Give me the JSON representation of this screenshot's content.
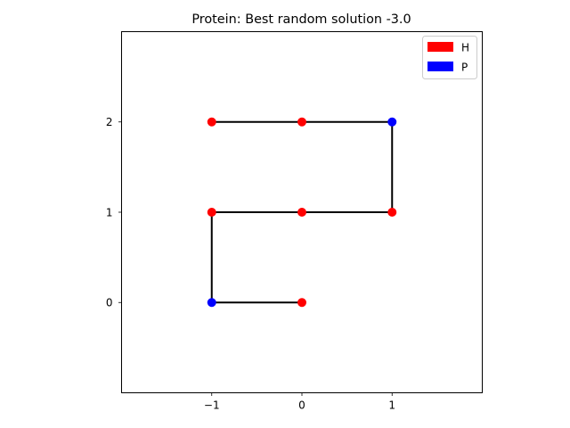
{
  "chart_data": {
    "type": "scatter",
    "title": "Protein: Best random solution -3.0",
    "xlabel": "",
    "ylabel": "",
    "xlim": [
      -2,
      2
    ],
    "ylim": [
      -1,
      3
    ],
    "xticks": [
      -1,
      0,
      1
    ],
    "yticks": [
      0,
      1,
      2
    ],
    "xtick_labels": [
      "−1",
      "0",
      "1"
    ],
    "ytick_labels": [
      "0",
      "1",
      "2"
    ],
    "grid": false,
    "legend_position": "top-right",
    "legend": [
      {
        "label": "H",
        "color": "#ff0000"
      },
      {
        "label": "P",
        "color": "#0000ff"
      }
    ],
    "colors": {
      "H": "#ff0000",
      "P": "#0000ff",
      "chain": "#000000"
    },
    "chain": [
      {
        "x": 0,
        "y": 0,
        "type": "H"
      },
      {
        "x": -1,
        "y": 0,
        "type": "P"
      },
      {
        "x": -1,
        "y": 1,
        "type": "H"
      },
      {
        "x": 0,
        "y": 1,
        "type": "H"
      },
      {
        "x": 1,
        "y": 1,
        "type": "H"
      },
      {
        "x": 1,
        "y": 2,
        "type": "P"
      },
      {
        "x": 0,
        "y": 2,
        "type": "H"
      },
      {
        "x": -1,
        "y": 2,
        "type": "H"
      }
    ]
  }
}
